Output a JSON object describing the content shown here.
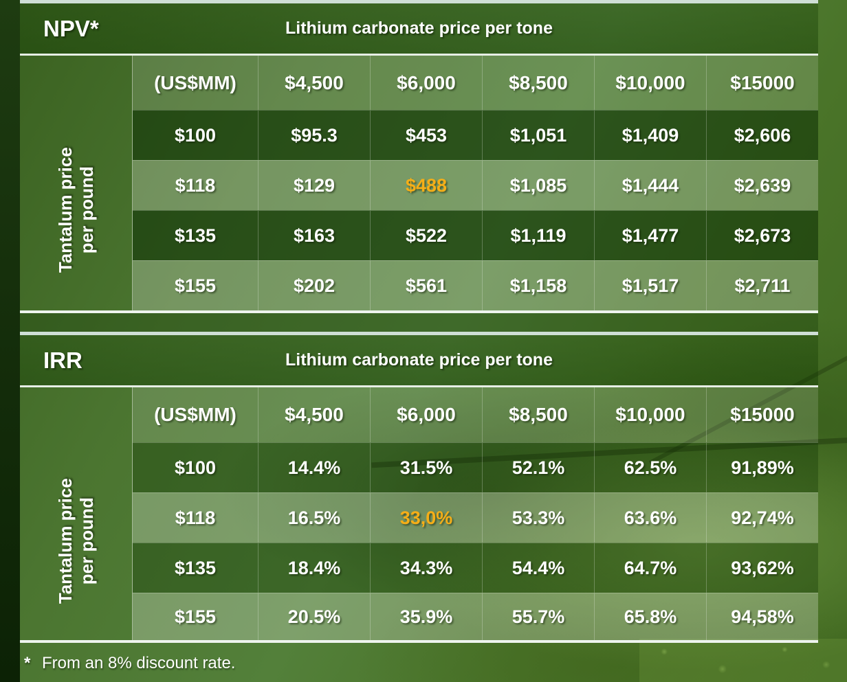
{
  "colors": {
    "highlight_orange": "#F6AE17",
    "table_dark_row_green": "#2F5814",
    "table_light_row_green": "#6E9350",
    "title_band_green": "#3C6B1E",
    "slide_background_green": "#4A7430",
    "border_line": "#E7EFE6"
  },
  "footnote": {
    "marker": "*",
    "text": "From an 8% discount rate."
  },
  "chart_data": [
    {
      "type": "table",
      "name": "NPV sensitivity table",
      "corner_label": "NPV*",
      "title": "Lithium carbonate price per tone",
      "row_axis_label_lines": [
        "Tantalum price",
        "per pound"
      ],
      "unit_header": "(US$MM)",
      "columns": [
        "$4,500",
        "$6,000",
        "$8,500",
        "$10,000",
        "$15000"
      ],
      "rows": [
        {
          "label": "$100",
          "values": [
            "$95.3",
            "$453",
            "$1,051",
            "$1,409",
            "$2,606"
          ]
        },
        {
          "label": "$118",
          "values": [
            "$129",
            "$488",
            "$1,085",
            "$1,444",
            "$2,639"
          ]
        },
        {
          "label": "$135",
          "values": [
            "$163",
            "$522",
            "$1,119",
            "$1,477",
            "$2,673"
          ]
        },
        {
          "label": "$155",
          "values": [
            "$202",
            "$561",
            "$1,158",
            "$1,517",
            "$2,711"
          ]
        }
      ],
      "highlight_cell": {
        "row_label": "$118",
        "column": "$6,000",
        "value": "$488",
        "color": "#F6AE17"
      }
    },
    {
      "type": "table",
      "name": "IRR sensitivity table",
      "corner_label": "IRR",
      "title": "Lithium carbonate price per tone",
      "row_axis_label_lines": [
        "Tantalum price",
        "per pound"
      ],
      "unit_header": "(US$MM)",
      "columns": [
        "$4,500",
        "$6,000",
        "$8,500",
        "$10,000",
        "$15000"
      ],
      "rows": [
        {
          "label": "$100",
          "values": [
            "14.4%",
            "31.5%",
            "52.1%",
            "62.5%",
            "91,89%"
          ]
        },
        {
          "label": "$118",
          "values": [
            "16.5%",
            "33,0%",
            "53.3%",
            "63.6%",
            "92,74%"
          ]
        },
        {
          "label": "$135",
          "values": [
            "18.4%",
            "34.3%",
            "54.4%",
            "64.7%",
            "93,62%"
          ]
        },
        {
          "label": "$155",
          "values": [
            "20.5%",
            "35.9%",
            "55.7%",
            "65.8%",
            "94,58%"
          ]
        }
      ],
      "highlight_cell": {
        "row_label": "$118",
        "column": "$6,000",
        "value": "33,0%",
        "color": "#F6AE17"
      }
    }
  ]
}
